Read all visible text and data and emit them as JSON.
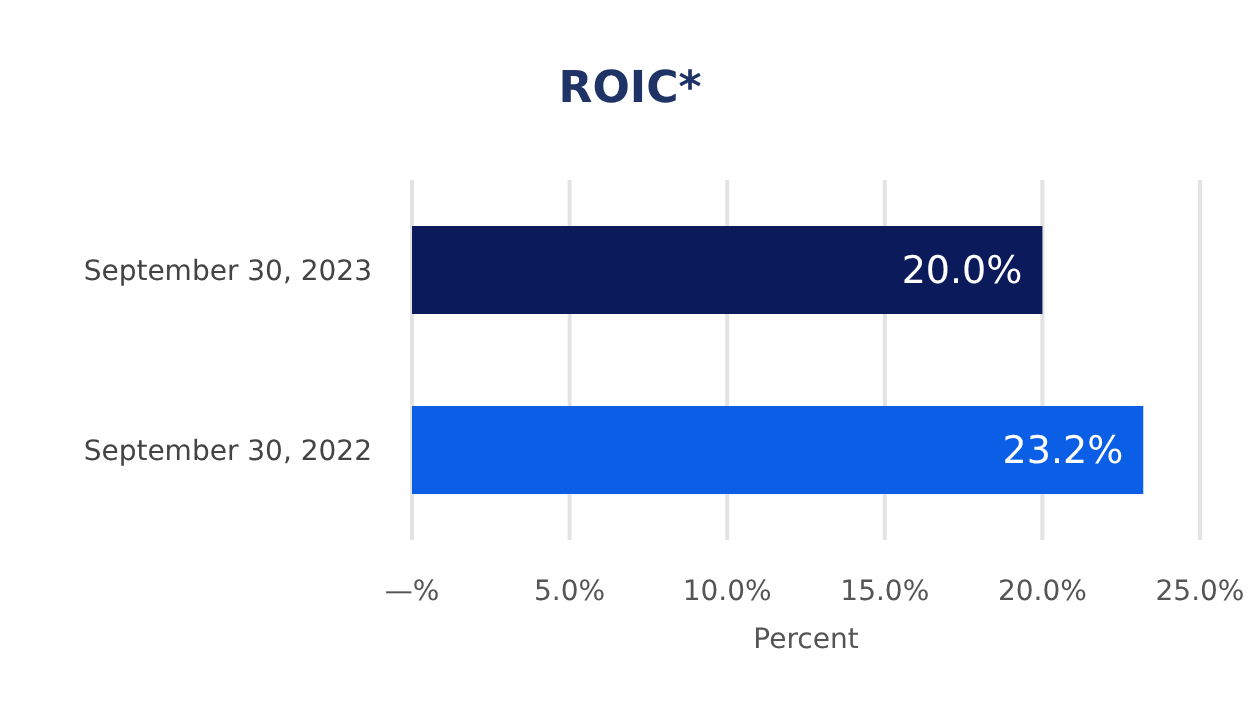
{
  "chart_data": {
    "type": "bar",
    "orientation": "horizontal",
    "title": "ROIC*",
    "xlabel": "Percent",
    "categories": [
      "September 30, 2023",
      "September 30, 2022"
    ],
    "values": [
      20.0,
      23.2
    ],
    "colors": [
      "#0b1a5b",
      "#0a5fe6"
    ],
    "value_labels": [
      "20.0%",
      "23.2%"
    ],
    "xlim": [
      0,
      25
    ],
    "xticks": [
      {
        "value": 0,
        "label": "—%"
      },
      {
        "value": 5,
        "label": "5.0%"
      },
      {
        "value": 10,
        "label": "10.0%"
      },
      {
        "value": 15,
        "label": "15.0%"
      },
      {
        "value": 20,
        "label": "20.0%"
      },
      {
        "value": 25,
        "label": "25.0%"
      }
    ],
    "grid": "x"
  }
}
